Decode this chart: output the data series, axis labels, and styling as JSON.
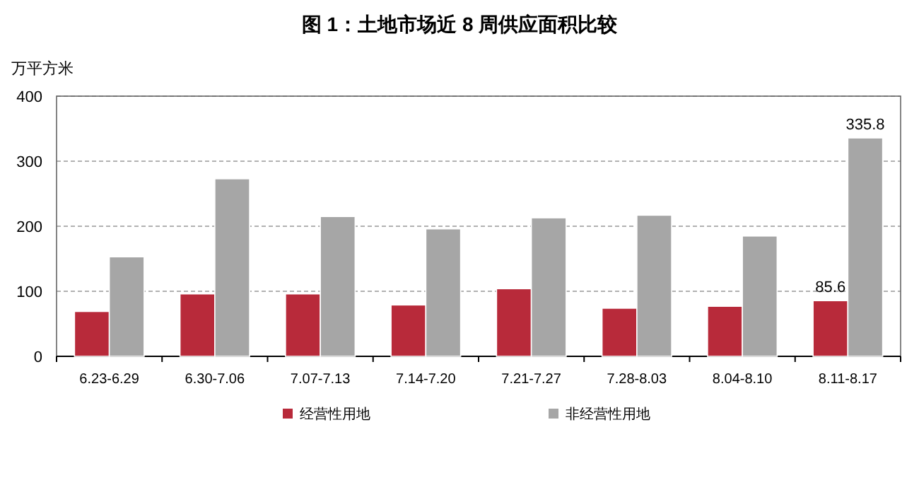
{
  "chart_data": {
    "type": "bar",
    "title": "图 1：土地市场近 8 周供应面积比较",
    "ylabel": "万平方米",
    "categories": [
      "6.23-6.29",
      "6.30-7.06",
      "7.07-7.13",
      "7.14-7.20",
      "7.21-7.27",
      "7.28-8.03",
      "8.04-8.10",
      "8.11-8.17"
    ],
    "series": [
      {
        "name": "经营性用地",
        "color": "#b82a3a",
        "values": [
          69,
          96,
          96,
          79,
          104,
          74,
          77,
          85.6
        ],
        "value_labels": [
          null,
          null,
          null,
          null,
          null,
          null,
          null,
          "85.6"
        ]
      },
      {
        "name": "非经营性用地",
        "color": "#a6a6a6",
        "values": [
          153,
          273,
          215,
          196,
          213,
          217,
          185,
          335.8
        ],
        "value_labels": [
          null,
          null,
          null,
          null,
          null,
          null,
          null,
          "335.8"
        ]
      }
    ],
    "ylim": [
      0,
      400
    ],
    "yticks": [
      0,
      100,
      200,
      300,
      400
    ],
    "grid": "y",
    "legend": "bottom"
  }
}
